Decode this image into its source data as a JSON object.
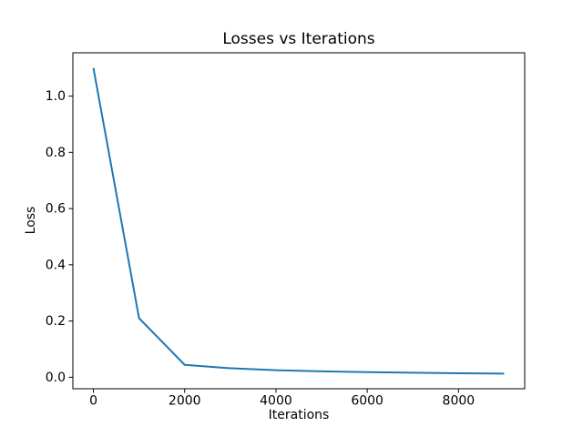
{
  "chart_data": {
    "type": "line",
    "title": "Losses vs Iterations",
    "xlabel": "Iterations",
    "ylabel": "Loss",
    "series": [
      {
        "name": "loss",
        "color": "#1f77b4",
        "x": [
          0,
          1000,
          2000,
          3000,
          4000,
          5000,
          6000,
          7000,
          8000,
          9000
        ],
        "y": [
          1.1,
          0.21,
          0.044,
          0.032,
          0.025,
          0.021,
          0.018,
          0.016,
          0.014,
          0.013
        ]
      }
    ],
    "xlim": [
      -450,
      9450
    ],
    "ylim": [
      -0.041,
      1.154
    ],
    "x_ticks": [
      0,
      2000,
      4000,
      6000,
      8000
    ],
    "x_tick_labels": [
      "0",
      "2000",
      "4000",
      "6000",
      "8000"
    ],
    "y_ticks": [
      0.0,
      0.2,
      0.4,
      0.6,
      0.8,
      1.0
    ],
    "y_tick_labels": [
      "0.0",
      "0.2",
      "0.4",
      "0.6",
      "0.8",
      "1.0"
    ],
    "grid": false,
    "legend": "none",
    "axes_color": "#000000",
    "background_color": "#ffffff"
  }
}
